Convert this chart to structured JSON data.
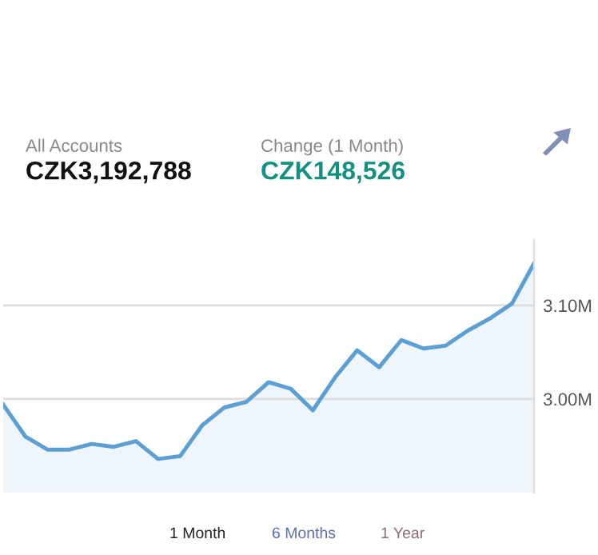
{
  "chart_data": {
    "type": "area",
    "annotations": [
      "All Accounts",
      "CZK3,192,788",
      "Change (1 Month)",
      "CZK148,526",
      "1 Month",
      "6 Months",
      "1 Year"
    ],
    "categories": [
      null,
      null,
      null,
      null,
      null,
      null,
      null,
      null,
      null,
      null,
      null,
      null,
      null,
      null,
      null,
      null,
      null,
      null,
      null,
      null,
      null,
      null,
      null,
      null,
      null
    ],
    "series": [
      {
        "color": "#5b9fd4",
        "values": [
          2.994,
          2.96,
          2.946,
          2.946,
          2.952,
          2.949,
          2.955,
          2.936,
          2.939,
          2.972,
          2.991,
          2.997,
          3.018,
          3.011,
          2.988,
          3.023,
          3.052,
          3.034,
          3.063,
          3.054,
          3.057,
          3.073,
          3.086,
          3.102,
          3.145
        ]
      }
    ],
    "yticks": [
      {
        "value": 3.0,
        "label": "3.00M"
      },
      {
        "value": 3.1,
        "label": "3.10M"
      }
    ],
    "ylim": [
      2.9,
      3.17
    ],
    "grid": "y",
    "legend": false
  }
}
